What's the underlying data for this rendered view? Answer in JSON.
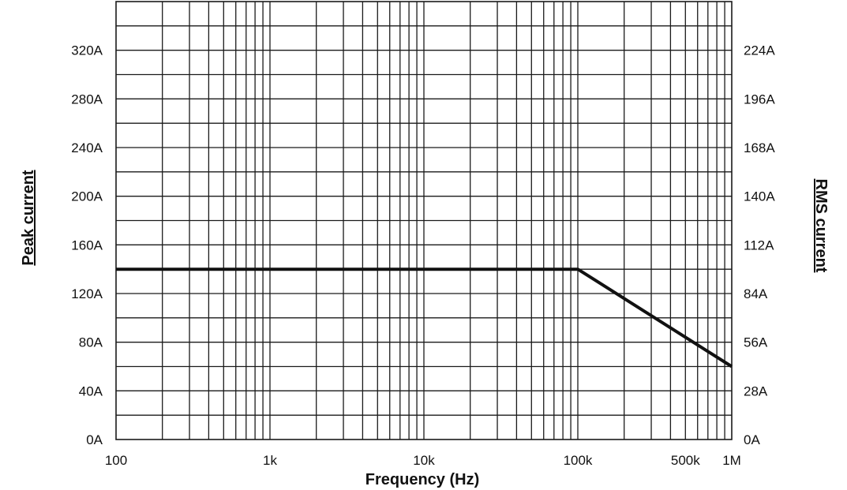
{
  "chart_data": {
    "type": "line",
    "xlabel": "Frequency (Hz)",
    "ylabel_left": "Peak current",
    "ylabel_right": "RMS current",
    "x_scale": "log",
    "xlim": [
      100,
      1000000
    ],
    "x_ticks": [
      {
        "value": 100,
        "label": "100"
      },
      {
        "value": 1000,
        "label": "1k"
      },
      {
        "value": 10000,
        "label": "10k"
      },
      {
        "value": 100000,
        "label": "100k"
      },
      {
        "value": 500000,
        "label": "500k"
      },
      {
        "value": 1000000,
        "label": "1M"
      }
    ],
    "ylim": [
      0,
      360
    ],
    "y_ticks_left": [
      {
        "value": 0,
        "label": "0A"
      },
      {
        "value": 40,
        "label": "40A"
      },
      {
        "value": 80,
        "label": "80A"
      },
      {
        "value": 120,
        "label": "120A"
      },
      {
        "value": 160,
        "label": "160A"
      },
      {
        "value": 200,
        "label": "200A"
      },
      {
        "value": 240,
        "label": "240A"
      },
      {
        "value": 280,
        "label": "280A"
      },
      {
        "value": 320,
        "label": "320A"
      }
    ],
    "y_ticks_right": [
      {
        "value": 0,
        "label": "0A"
      },
      {
        "value": 40,
        "label": "28A"
      },
      {
        "value": 80,
        "label": "56A"
      },
      {
        "value": 120,
        "label": "84A"
      },
      {
        "value": 160,
        "label": "112A"
      },
      {
        "value": 200,
        "label": "140A"
      },
      {
        "value": 240,
        "label": "168A"
      },
      {
        "value": 280,
        "label": "196A"
      },
      {
        "value": 320,
        "label": "224A"
      }
    ],
    "y_minor_step": 20,
    "grid": true,
    "series": [
      {
        "color": "#111111",
        "x": [
          100,
          100000,
          1000000
        ],
        "y": [
          140,
          140,
          60
        ]
      }
    ]
  }
}
